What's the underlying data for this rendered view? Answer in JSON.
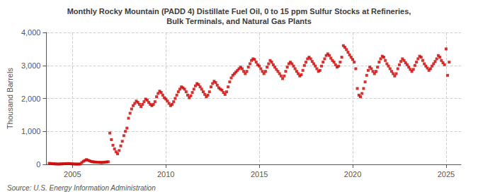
{
  "chart_data": {
    "type": "scatter",
    "title": "Monthly Rocky Mountain (PADD 4) Distillate Fuel Oil, 0 to 15 ppm Sulfur Stocks at Refineries,\nBulk Terminals, and Natural Gas Plants",
    "ylabel": "Thousand Barrels",
    "annotations": [
      "Source: U.S. Energy Information Administration"
    ],
    "color": "#cc0000",
    "marker": "square",
    "grid": true,
    "xlim": [
      2003.6,
      2025.8
    ],
    "xticks": [
      2005,
      2010,
      2015,
      2020,
      2025
    ],
    "ylim": [
      0,
      4000
    ],
    "yticks": [
      0,
      {
        "value": 1000,
        "label": "1,000"
      },
      {
        "value": 2000,
        "label": "2,000"
      },
      {
        "value": 3000,
        "label": "3,000"
      },
      {
        "value": 4000,
        "label": "4,000"
      }
    ],
    "x": [
      2003.75,
      2003.8333333333333,
      2003.9166666666667,
      2004,
      2004.0833333333333,
      2004.1666666666667,
      2004.25,
      2004.3333333333333,
      2004.4166666666667,
      2004.5,
      2004.5833333333333,
      2004.6666666666667,
      2004.75,
      2004.8333333333333,
      2004.9166666666667,
      2005,
      2005.0833333333333,
      2005.1666666666667,
      2005.25,
      2005.3333333333333,
      2005.4166666666667,
      2005.5,
      2005.5833333333333,
      2005.6666666666667,
      2005.75,
      2005.8333333333333,
      2005.9166666666667,
      2006,
      2006.0833333333333,
      2006.1666666666667,
      2006.25,
      2006.3333333333333,
      2006.4166666666667,
      2006.5,
      2006.5833333333333,
      2006.6666666666667,
      2006.75,
      2006.8333333333333,
      2006.9166666666667,
      2007,
      2007.0833333333333,
      2007.1666666666667,
      2007.25,
      2007.3333333333333,
      2007.4166666666667,
      2007.5,
      2007.5833333333333,
      2007.6666666666667,
      2007.75,
      2007.8333333333333,
      2007.9166666666667,
      2008,
      2008.0833333333333,
      2008.1666666666667,
      2008.25,
      2008.3333333333333,
      2008.4166666666667,
      2008.5,
      2008.5833333333333,
      2008.6666666666667,
      2008.75,
      2008.8333333333333,
      2008.9166666666667,
      2009,
      2009.0833333333333,
      2009.1666666666667,
      2009.25,
      2009.3333333333333,
      2009.4166666666667,
      2009.5,
      2009.5833333333333,
      2009.6666666666667,
      2009.75,
      2009.8333333333333,
      2009.9166666666667,
      2010,
      2010.0833333333333,
      2010.1666666666667,
      2010.25,
      2010.3333333333333,
      2010.4166666666667,
      2010.5,
      2010.5833333333333,
      2010.6666666666667,
      2010.75,
      2010.8333333333333,
      2010.9166666666667,
      2011,
      2011.0833333333333,
      2011.1666666666667,
      2011.25,
      2011.3333333333333,
      2011.4166666666667,
      2011.5,
      2011.5833333333333,
      2011.6666666666667,
      2011.75,
      2011.8333333333333,
      2011.9166666666667,
      2012,
      2012.0833333333333,
      2012.1666666666667,
      2012.25,
      2012.3333333333333,
      2012.4166666666667,
      2012.5,
      2012.5833333333333,
      2012.6666666666667,
      2012.75,
      2012.8333333333333,
      2012.9166666666667,
      2013,
      2013.0833333333333,
      2013.1666666666667,
      2013.25,
      2013.3333333333333,
      2013.4166666666667,
      2013.5,
      2013.5833333333333,
      2013.6666666666667,
      2013.75,
      2013.8333333333333,
      2013.9166666666667,
      2014,
      2014.0833333333333,
      2014.1666666666667,
      2014.25,
      2014.3333333333333,
      2014.4166666666667,
      2014.5,
      2014.5833333333333,
      2014.6666666666667,
      2014.75,
      2014.8333333333333,
      2014.9166666666667,
      2015,
      2015.0833333333333,
      2015.1666666666667,
      2015.25,
      2015.3333333333333,
      2015.4166666666667,
      2015.5,
      2015.5833333333333,
      2015.6666666666667,
      2015.75,
      2015.8333333333333,
      2015.9166666666667,
      2016,
      2016.0833333333333,
      2016.1666666666667,
      2016.25,
      2016.3333333333333,
      2016.4166666666667,
      2016.5,
      2016.5833333333333,
      2016.6666666666667,
      2016.75,
      2016.8333333333333,
      2016.9166666666667,
      2017,
      2017.0833333333333,
      2017.1666666666667,
      2017.25,
      2017.3333333333333,
      2017.4166666666667,
      2017.5,
      2017.5833333333333,
      2017.6666666666667,
      2017.75,
      2017.8333333333333,
      2017.9166666666667,
      2018,
      2018.0833333333333,
      2018.1666666666667,
      2018.25,
      2018.3333333333333,
      2018.4166666666667,
      2018.5,
      2018.5833333333333,
      2018.6666666666667,
      2018.75,
      2018.8333333333333,
      2018.9166666666667,
      2019,
      2019.0833333333333,
      2019.1666666666667,
      2019.25,
      2019.3333333333333,
      2019.4166666666667,
      2019.5,
      2019.5833333333333,
      2019.6666666666667,
      2019.75,
      2019.8333333333333,
      2019.9166666666667,
      2020,
      2020.0833333333333,
      2020.1666666666667,
      2020.25,
      2020.3333333333333,
      2020.4166666666667,
      2020.5,
      2020.5833333333333,
      2020.6666666666667,
      2020.75,
      2020.8333333333333,
      2020.9166666666667,
      2021,
      2021.0833333333333,
      2021.1666666666667,
      2021.25,
      2021.3333333333333,
      2021.4166666666667,
      2021.5,
      2021.5833333333333,
      2021.6666666666667,
      2021.75,
      2021.8333333333333,
      2021.9166666666667,
      2022,
      2022.0833333333333,
      2022.1666666666667,
      2022.25,
      2022.3333333333333,
      2022.4166666666667,
      2022.5,
      2022.5833333333333,
      2022.6666666666667,
      2022.75,
      2022.8333333333333,
      2022.9166666666667,
      2023,
      2023.0833333333333,
      2023.1666666666667,
      2023.25,
      2023.3333333333333,
      2023.4166666666667,
      2023.5,
      2023.5833333333333,
      2023.6666666666667,
      2023.75,
      2023.8333333333333,
      2023.9166666666667,
      2024,
      2024.0833333333333,
      2024.1666666666667,
      2024.25,
      2024.3333333333333,
      2024.4166666666667,
      2024.5,
      2024.5833333333333,
      2024.6666666666667,
      2024.75,
      2024.8333333333333,
      2024.9166666666667,
      2025,
      2025.0833333333333,
      2025.1666666666667
    ],
    "values": [
      30,
      25,
      20,
      18,
      15,
      12,
      10,
      12,
      15,
      18,
      20,
      22,
      25,
      22,
      18,
      15,
      12,
      10,
      8,
      10,
      12,
      55,
      95,
      118,
      145,
      125,
      108,
      88,
      78,
      72,
      68,
      65,
      62,
      58,
      55,
      62,
      68,
      72,
      78,
      950,
      750,
      580,
      470,
      380,
      320,
      420,
      560,
      700,
      870,
      1000,
      1100,
      1400,
      1550,
      1680,
      1780,
      1850,
      1920,
      1880,
      1820,
      1750,
      1820,
      1900,
      1980,
      1950,
      1880,
      1820,
      1780,
      1820,
      1900,
      2050,
      2150,
      2220,
      2180,
      2100,
      2020,
      1980,
      1920,
      1850,
      1780,
      1820,
      1900,
      2000,
      2100,
      2200,
      2280,
      2350,
      2320,
      2280,
      2200,
      2100,
      2020,
      2080,
      2180,
      2280,
      2380,
      2450,
      2420,
      2350,
      2280,
      2200,
      2120,
      2050,
      2100,
      2200,
      2350,
      2450,
      2520,
      2480,
      2400,
      2320,
      2280,
      2250,
      2180,
      2120,
      2200,
      2350,
      2500,
      2620,
      2700,
      2750,
      2800,
      2850,
      2900,
      2950,
      2900,
      2820,
      2750,
      2820,
      2950,
      3050,
      3150,
      3200,
      3180,
      3100,
      3020,
      2980,
      2900,
      2820,
      2750,
      2820,
      2950,
      3050,
      3150,
      3100,
      3020,
      2950,
      2880,
      2820,
      2750,
      2680,
      2600,
      2680,
      2820,
      2950,
      3050,
      3100,
      3050,
      2980,
      2900,
      2820,
      2750,
      2680,
      2720,
      2850,
      3000,
      3100,
      3200,
      3250,
      3200,
      3120,
      3050,
      2980,
      2900,
      2820,
      2850,
      2980,
      3100,
      3200,
      3300,
      3350,
      3300,
      3220,
      3150,
      3100,
      3020,
      2950,
      2980,
      3100,
      3250,
      3600,
      3550,
      3480,
      3400,
      3320,
      3250,
      3180,
      3100,
      2900,
      2300,
      2100,
      2050,
      2150,
      2300,
      2500,
      2700,
      2850,
      2950,
      2900,
      2820,
      2750,
      2820,
      2950,
      3100,
      3200,
      3280,
      3250,
      3150,
      3050,
      2980,
      2900,
      2820,
      2750,
      2680,
      2750,
      2900,
      3020,
      3120,
      3200,
      3150,
      3080,
      3020,
      2950,
      2880,
      2820,
      2880,
      3000,
      3100,
      3200,
      3280,
      3250,
      3150,
      3050,
      2980,
      2920,
      2850,
      2900,
      2980,
      3050,
      3120,
      3200,
      3300,
      3250,
      3150,
      3080,
      3020,
      3500,
      2700,
      3100
    ]
  }
}
